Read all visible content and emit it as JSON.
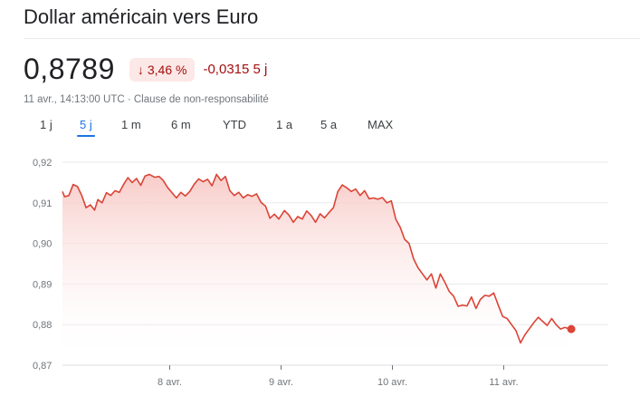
{
  "header": {
    "title": "Dollar américain vers Euro"
  },
  "quote": {
    "price": "0,8789",
    "change_pct": "3,46 %",
    "change_arrow": "↓",
    "change_abs": "-0,0315 5 j",
    "meta": "11 avr., 14:13:00 UTC · Clause de non-responsabilité"
  },
  "tabs": [
    {
      "label": "1 j"
    },
    {
      "label": "5 j",
      "active": true
    },
    {
      "label": "1 m"
    },
    {
      "label": "6 m"
    },
    {
      "label": "YTD"
    },
    {
      "label": "1 a"
    },
    {
      "label": "5 a"
    },
    {
      "label": "MAX"
    }
  ],
  "colors": {
    "line": "#db4437",
    "fill_top": "#f7c6c2",
    "grid": "#e8eaed",
    "active_tab": "#1a73e8"
  },
  "chart_data": {
    "type": "area",
    "ylim": [
      0.87,
      0.92
    ],
    "y_ticks": [
      "0,87",
      "0,88",
      "0,89",
      "0,90",
      "0,91",
      "0,92"
    ],
    "y_tick_values": [
      0.87,
      0.88,
      0.89,
      0.9,
      0.91,
      0.92
    ],
    "x_ticks": [
      {
        "label": "8 avr.",
        "t": 1.0
      },
      {
        "label": "9 avr.",
        "t": 2.0
      },
      {
        "label": "10 avr.",
        "t": 3.0
      },
      {
        "label": "11 avr.",
        "t": 4.0
      }
    ],
    "xlim": [
      0.0,
      5.0
    ],
    "series": [
      {
        "x": [
          0.0,
          0.02,
          0.06,
          0.1,
          0.14,
          0.18,
          0.22,
          0.26,
          0.3,
          0.33,
          0.37,
          0.41,
          0.45,
          0.49,
          0.53,
          0.57,
          0.61,
          0.65,
          0.69,
          0.73,
          0.77,
          0.81,
          0.86,
          0.9,
          0.94,
          0.98,
          1.02,
          1.06,
          1.1,
          1.14,
          1.18,
          1.22,
          1.26,
          1.3,
          1.34,
          1.38,
          1.42,
          1.46,
          1.5,
          1.54,
          1.58,
          1.62,
          1.66,
          1.7,
          1.74,
          1.78,
          1.82,
          1.86,
          1.9,
          1.94,
          1.98,
          2.03,
          2.07,
          2.11,
          2.15,
          2.19,
          2.23,
          2.27,
          2.31,
          2.35,
          2.39,
          2.43,
          2.47,
          2.51,
          2.55,
          2.59,
          2.63,
          2.67,
          2.71,
          2.75,
          2.79,
          2.83,
          2.87,
          2.91,
          2.95,
          2.99,
          3.03,
          3.07,
          3.11,
          3.15,
          3.19,
          3.23,
          3.27,
          3.31,
          3.35,
          3.39,
          3.43,
          3.47,
          3.51,
          3.55,
          3.59,
          3.63,
          3.67,
          3.71,
          3.75,
          3.79,
          3.83,
          3.87,
          3.91,
          3.95,
          3.99,
          4.03,
          4.07,
          4.11,
          4.15,
          4.19,
          4.23,
          4.27,
          4.31,
          4.35,
          4.39,
          4.43,
          4.47,
          4.51,
          4.55,
          4.59
        ],
        "y": [
          0.9128,
          0.9115,
          0.9118,
          0.9145,
          0.914,
          0.9118,
          0.9088,
          0.9095,
          0.9082,
          0.9108,
          0.91,
          0.9125,
          0.9118,
          0.913,
          0.9126,
          0.9145,
          0.9162,
          0.915,
          0.916,
          0.9143,
          0.9166,
          0.917,
          0.9163,
          0.9165,
          0.9155,
          0.9138,
          0.9125,
          0.9112,
          0.9126,
          0.9117,
          0.9128,
          0.9146,
          0.9159,
          0.9152,
          0.9158,
          0.9142,
          0.917,
          0.9155,
          0.9165,
          0.913,
          0.9118,
          0.9126,
          0.9112,
          0.912,
          0.9116,
          0.9122,
          0.9101,
          0.9092,
          0.9062,
          0.9072,
          0.906,
          0.9081,
          0.907,
          0.9052,
          0.9066,
          0.906,
          0.908,
          0.9069,
          0.9052,
          0.9073,
          0.9063,
          0.9076,
          0.9088,
          0.9128,
          0.9144,
          0.9137,
          0.9128,
          0.9134,
          0.9118,
          0.913,
          0.911,
          0.9112,
          0.9109,
          0.9113,
          0.91,
          0.9105,
          0.906,
          0.904,
          0.901,
          0.9,
          0.8962,
          0.894,
          0.8925,
          0.891,
          0.8925,
          0.889,
          0.8925,
          0.8905,
          0.8882,
          0.887,
          0.8845,
          0.8848,
          0.8846,
          0.8868,
          0.884,
          0.8862,
          0.8872,
          0.887,
          0.8878,
          0.8848,
          0.882,
          0.8815,
          0.88,
          0.8785,
          0.8755,
          0.8775,
          0.879,
          0.8805,
          0.8818,
          0.8808,
          0.8798,
          0.8815,
          0.88,
          0.8789,
          0.8793,
          0.8789
        ]
      }
    ]
  }
}
